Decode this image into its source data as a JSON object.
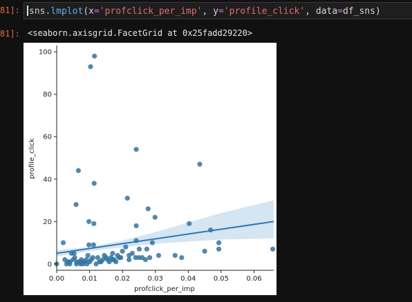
{
  "cell": {
    "in_prompt": "81]:",
    "out_prompt": "81]:",
    "code_tokens": [
      {
        "t": "sns.",
        "c": "id"
      },
      {
        "t": "lmplot",
        "c": "fn"
      },
      {
        "t": "(x",
        "c": "id"
      },
      {
        "t": "=",
        "c": "op"
      },
      {
        "t": "'profclick_per_imp'",
        "c": "str"
      },
      {
        "t": ", y",
        "c": "id"
      },
      {
        "t": "=",
        "c": "op"
      },
      {
        "t": "'profile_click'",
        "c": "str"
      },
      {
        "t": ", data",
        "c": "id"
      },
      {
        "t": "=",
        "c": "op"
      },
      {
        "t": "df_sns)",
        "c": "id"
      }
    ],
    "output_text": "<seaborn.axisgrid.FacetGrid at 0x25fadd29220>"
  },
  "colors": {
    "point": "#3274a1",
    "line": "#2a78b6",
    "ci_band": "#c7dcee",
    "background": "#111111"
  },
  "chart_data": {
    "type": "scatter",
    "xlabel": "profclick_per_imp",
    "ylabel": "profile_click",
    "xlim": [
      0,
      0.066
    ],
    "ylim": [
      -3,
      103
    ],
    "xticks": [
      "0.00",
      "0.01",
      "0.02",
      "0.03",
      "0.04",
      "0.05",
      "0.06"
    ],
    "yticks": [
      "0",
      "20",
      "40",
      "60",
      "80",
      "100"
    ],
    "grid": false,
    "regression": {
      "x0": 0.0,
      "y0": 5.0,
      "x1": 0.066,
      "y1": 20.0
    },
    "ci_band": {
      "x": [
        0.0,
        0.01,
        0.02,
        0.03,
        0.04,
        0.05,
        0.066
      ],
      "upper": [
        6.5,
        8.0,
        11.0,
        15.0,
        19.5,
        24.0,
        30.0
      ],
      "lower": [
        3.5,
        6.0,
        7.8,
        9.5,
        10.5,
        11.5,
        12.0
      ]
    },
    "points": [
      [
        0.0115,
        98
      ],
      [
        0.0103,
        93
      ],
      [
        0.0242,
        54
      ],
      [
        0.0066,
        44
      ],
      [
        0.0435,
        47
      ],
      [
        0.0114,
        38
      ],
      [
        0.0215,
        31
      ],
      [
        0.0059,
        28
      ],
      [
        0.0278,
        26
      ],
      [
        0.0299,
        22
      ],
      [
        0.0098,
        20
      ],
      [
        0.0113,
        19
      ],
      [
        0.0242,
        18
      ],
      [
        0.0403,
        19
      ],
      [
        0.0468,
        16
      ],
      [
        0.002,
        10
      ],
      [
        0.0098,
        9
      ],
      [
        0.0112,
        9
      ],
      [
        0.0242,
        11
      ],
      [
        0.0291,
        10
      ],
      [
        0.0493,
        10
      ],
      [
        0.021,
        8
      ],
      [
        0.0251,
        7
      ],
      [
        0.0274,
        7
      ],
      [
        0.0493,
        7
      ],
      [
        0.0657,
        7
      ],
      [
        0.045,
        6
      ],
      [
        0.0045,
        5
      ],
      [
        0.0053,
        5
      ],
      [
        0.017,
        5
      ],
      [
        0.022,
        4
      ],
      [
        0.031,
        4
      ],
      [
        0.036,
        4
      ],
      [
        0.038,
        3
      ],
      [
        0.02,
        6
      ],
      [
        0.023,
        5
      ],
      [
        0.026,
        3
      ],
      [
        0.0,
        0
      ],
      [
        0.003,
        0
      ],
      [
        0.004,
        1
      ],
      [
        0.005,
        2
      ],
      [
        0.006,
        0
      ],
      [
        0.007,
        1
      ],
      [
        0.008,
        0
      ],
      [
        0.009,
        2
      ],
      [
        0.01,
        1
      ],
      [
        0.011,
        3
      ],
      [
        0.012,
        0
      ],
      [
        0.013,
        1
      ],
      [
        0.014,
        2
      ],
      [
        0.015,
        3
      ],
      [
        0.016,
        1
      ],
      [
        0.017,
        2
      ],
      [
        0.018,
        1
      ],
      [
        0.019,
        3
      ],
      [
        0.0025,
        2
      ],
      [
        0.0035,
        1
      ],
      [
        0.0055,
        3
      ],
      [
        0.0075,
        2
      ],
      [
        0.0085,
        1
      ],
      [
        0.0095,
        4
      ],
      [
        0.0105,
        2
      ],
      [
        0.0125,
        3
      ],
      [
        0.0135,
        1
      ],
      [
        0.0145,
        4
      ],
      [
        0.0155,
        2
      ],
      [
        0.0165,
        3
      ],
      [
        0.0175,
        2
      ],
      [
        0.0185,
        4
      ],
      [
        0.0195,
        3
      ],
      [
        0.024,
        3
      ],
      [
        0.025,
        3
      ],
      [
        0.027,
        2
      ],
      [
        0.0283,
        3
      ],
      [
        0.022,
        2
      ],
      [
        0.004,
        0
      ],
      [
        0.0062,
        1
      ],
      [
        0.0072,
        0
      ],
      [
        0.0082,
        1
      ],
      [
        0.0092,
        0
      ]
    ]
  }
}
